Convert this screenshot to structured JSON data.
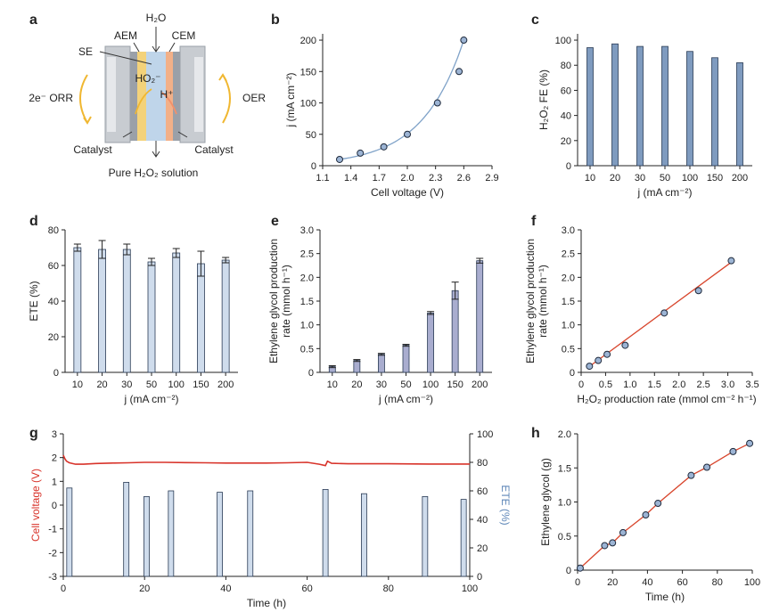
{
  "panels": {
    "a": {
      "letter": "a",
      "labels": {
        "h2o": "H₂O",
        "aem": "AEM",
        "cem": "CEM",
        "se": "SE",
        "ho2": "HO₂⁻",
        "hplus": "H⁺",
        "orr": "2e⁻ ORR",
        "oer": "OER",
        "catalyst_left": "Catalyst",
        "catalyst_right": "Catalyst",
        "product": "Pure H₂O₂ solution"
      },
      "colors": {
        "yellow": "#f3d27a",
        "blue": "#bfd5ea",
        "orange": "#f2b088",
        "gray": "#c8ccd1"
      }
    },
    "b": {
      "letter": "b"
    },
    "c": {
      "letter": "c"
    },
    "d": {
      "letter": "d"
    },
    "e": {
      "letter": "e"
    },
    "f": {
      "letter": "f"
    },
    "g": {
      "letter": "g"
    },
    "h": {
      "letter": "h"
    }
  },
  "chart_data": [
    {
      "id": "b",
      "type": "scatter",
      "title": "",
      "xlabel": "Cell voltage (V)",
      "ylabel": "j (mA cm⁻²)",
      "x_ticks": [
        "1.1",
        "1.4",
        "1.7",
        "2.0",
        "2.3",
        "2.6",
        "2.9"
      ],
      "y_ticks": [
        "0",
        "50",
        "100",
        "150",
        "200"
      ],
      "xlim": [
        1.1,
        2.9
      ],
      "ylim": [
        0,
        210
      ],
      "series": [
        {
          "x": [
            1.28,
            1.5,
            1.75,
            2.0,
            2.32,
            2.55,
            2.6
          ],
          "y": [
            10,
            20,
            30,
            50,
            100,
            150,
            200
          ]
        }
      ],
      "fit": "exponential curve",
      "colors": {
        "marker": "#9cb4d4",
        "curve": "#7fa2c8"
      }
    },
    {
      "id": "c",
      "type": "bar",
      "title": "",
      "xlabel": "j (mA cm⁻²)",
      "ylabel": "H₂O₂ FE (%)",
      "categories": [
        "10",
        "20",
        "30",
        "50",
        "100",
        "150",
        "200"
      ],
      "values": [
        94,
        97,
        95,
        95,
        91,
        86,
        82
      ],
      "y_ticks": [
        "0",
        "20",
        "40",
        "60",
        "80",
        "100"
      ],
      "ylim": [
        0,
        105
      ],
      "colors": {
        "bar": "#7f9bbf"
      }
    },
    {
      "id": "d",
      "type": "bar",
      "title": "",
      "xlabel": "j (mA cm⁻²)",
      "ylabel": "ETE (%)",
      "categories": [
        "10",
        "20",
        "30",
        "50",
        "100",
        "150",
        "200"
      ],
      "values": [
        70,
        69,
        69,
        62,
        67,
        61,
        63
      ],
      "errors": [
        2,
        5,
        3,
        2,
        2.5,
        7,
        1.5
      ],
      "y_ticks": [
        "0",
        "20",
        "40",
        "60",
        "80"
      ],
      "ylim": [
        0,
        80
      ],
      "colors": {
        "bar": "#cfdcec"
      }
    },
    {
      "id": "e",
      "type": "bar",
      "title": "",
      "xlabel": "j (mA cm⁻²)",
      "ylabel_lines": [
        "Ethylene glycol production",
        "rate (mmol h⁻¹)"
      ],
      "categories": [
        "10",
        "20",
        "30",
        "50",
        "100",
        "150",
        "200"
      ],
      "values": [
        0.12,
        0.25,
        0.38,
        0.57,
        1.25,
        1.72,
        2.35
      ],
      "errors": [
        0.02,
        0.02,
        0.02,
        0.02,
        0.03,
        0.18,
        0.05
      ],
      "y_ticks": [
        "0",
        "0.5",
        "1.0",
        "1.5",
        "2.0",
        "2.5",
        "3.0"
      ],
      "ylim": [
        0,
        3.0
      ],
      "colors": {
        "bar": "#a9adcf"
      }
    },
    {
      "id": "f",
      "type": "scatter",
      "title": "",
      "xlabel": "H₂O₂ production rate (mmol cm⁻² h⁻¹)",
      "ylabel_lines": [
        "Ethylene glycol production",
        "rate (mmol h⁻¹)"
      ],
      "x_ticks": [
        "0",
        "0.5",
        "1.0",
        "1.5",
        "2.0",
        "2.5",
        "3.0",
        "3.5"
      ],
      "y_ticks": [
        "0",
        "0.5",
        "1.0",
        "1.5",
        "2.0",
        "2.5",
        "3.0"
      ],
      "xlim": [
        0,
        3.5
      ],
      "ylim": [
        0,
        3.0
      ],
      "series": [
        {
          "x": [
            0.17,
            0.35,
            0.53,
            0.9,
            1.7,
            2.4,
            3.07
          ],
          "y": [
            0.13,
            0.25,
            0.38,
            0.57,
            1.25,
            1.72,
            2.35
          ]
        }
      ],
      "fit_line": {
        "x": [
          0.15,
          3.1
        ],
        "y": [
          0.11,
          2.34
        ]
      },
      "colors": {
        "marker": "#9cb4d4",
        "line": "#d8452c"
      }
    },
    {
      "id": "g",
      "type": "line",
      "title": "",
      "xlabel": "Time (h)",
      "ylabel": "Cell voltage (V)",
      "ylabel_right": "ETE (%)",
      "x_ticks": [
        "0",
        "20",
        "40",
        "60",
        "80",
        "100"
      ],
      "y_ticks": [
        "-3",
        "-2",
        "-1",
        "0",
        "1",
        "2",
        "3"
      ],
      "y_ticks_right": [
        "0",
        "20",
        "40",
        "60",
        "80",
        "100"
      ],
      "xlim": [
        0,
        100
      ],
      "ylim": [
        -3,
        3
      ],
      "ylim_right": [
        0,
        100
      ],
      "voltage": {
        "x": [
          0,
          0.4,
          0.8,
          1.5,
          3,
          5,
          8,
          12,
          16,
          20,
          25,
          30,
          35,
          40,
          45,
          50,
          55,
          60,
          63,
          64.5,
          65,
          66,
          70,
          80,
          90,
          100
        ],
        "y": [
          2.1,
          1.95,
          1.85,
          1.78,
          1.72,
          1.72,
          1.75,
          1.77,
          1.78,
          1.8,
          1.8,
          1.79,
          1.78,
          1.77,
          1.77,
          1.77,
          1.78,
          1.8,
          1.72,
          1.66,
          1.85,
          1.76,
          1.74,
          1.74,
          1.73,
          1.73
        ]
      },
      "ete_bars": {
        "x": [
          1.5,
          15.5,
          20.5,
          26.5,
          38.5,
          46,
          64.5,
          74,
          89,
          98.5
        ],
        "values": [
          62,
          66,
          56,
          60,
          59,
          60,
          61,
          58,
          56,
          54
        ]
      },
      "colors": {
        "voltage": "#d8332a",
        "bar": "#cfdcec",
        "right_axis_label": "#5f87b8"
      }
    },
    {
      "id": "h",
      "type": "line",
      "title": "",
      "xlabel": "Time (h)",
      "ylabel": "Ethylene glycol (g)",
      "x_ticks": [
        "0",
        "20",
        "40",
        "60",
        "80",
        "100"
      ],
      "y_ticks": [
        "0",
        "0.5",
        "1.0",
        "1.5",
        "2.0"
      ],
      "xlim": [
        0,
        100
      ],
      "ylim": [
        0,
        2.0
      ],
      "series": [
        {
          "x": [
            1.5,
            15.5,
            20,
            26,
            39,
            46,
            65,
            74,
            89,
            98.5
          ],
          "y": [
            0.03,
            0.36,
            0.4,
            0.55,
            0.81,
            0.98,
            1.39,
            1.51,
            1.74,
            1.86
          ]
        }
      ],
      "colors": {
        "marker": "#9cb4d4",
        "line": "#d8452c"
      }
    }
  ]
}
